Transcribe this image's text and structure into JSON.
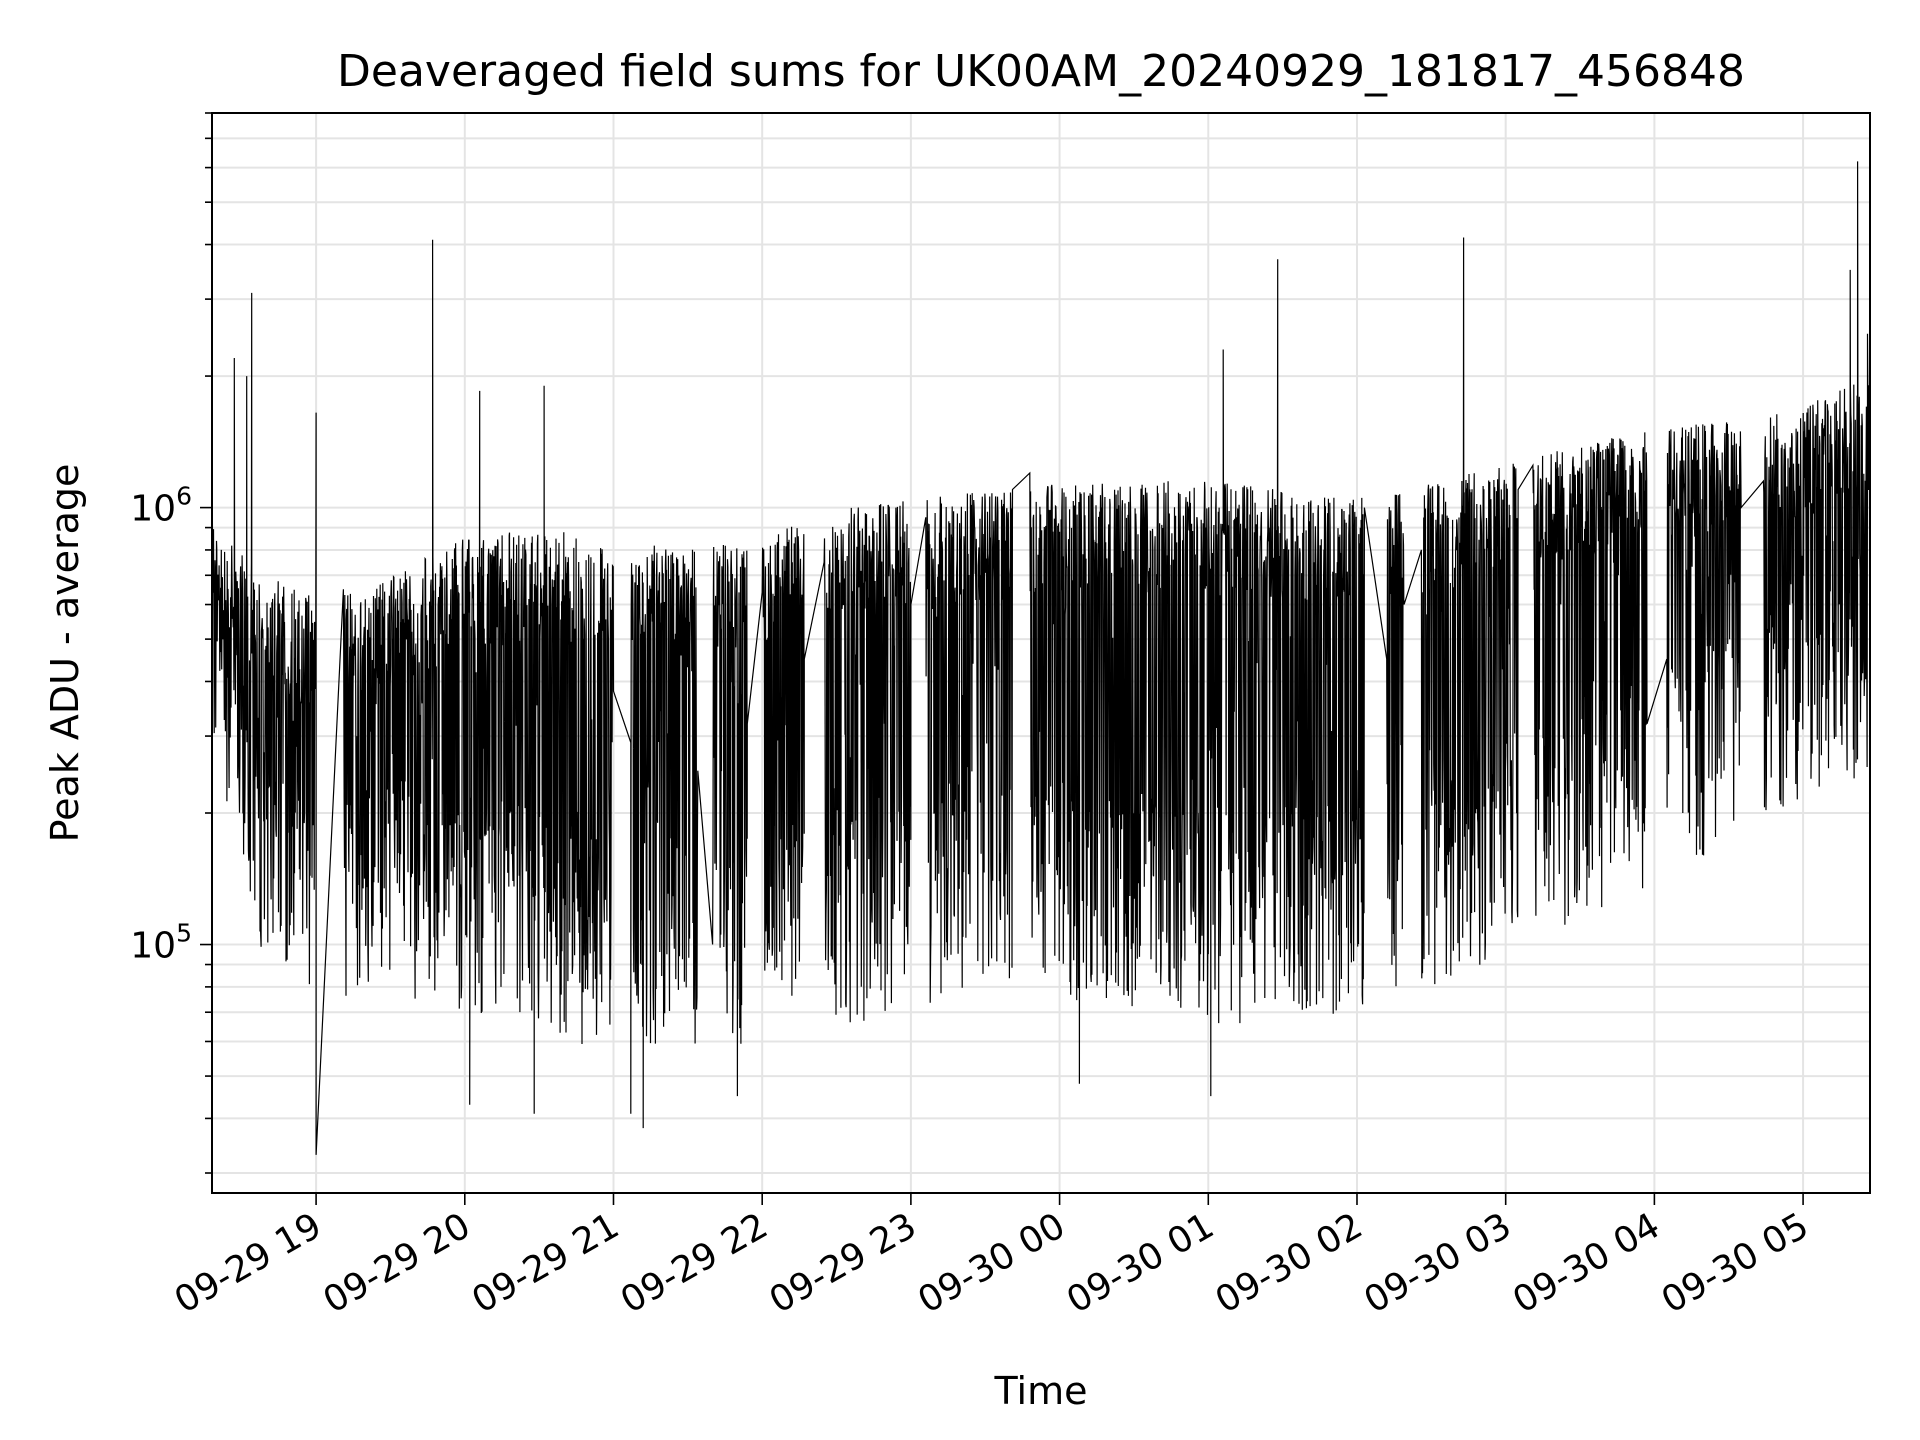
{
  "chart_data": {
    "type": "line",
    "title": "Deaveraged field sums for UK00AM_20240929_181817_456848",
    "xlabel": "Time",
    "ylabel": "Peak ADU - average",
    "yscale": "log",
    "ylim": [
      27000,
      8000000
    ],
    "xlim": [
      "2024-09-29 18:18",
      "2024-09-30 05:27"
    ],
    "grid": true,
    "line_color": "#000000",
    "x_ticks": [
      "09-29 19",
      "09-29 20",
      "09-29 21",
      "09-29 22",
      "09-29 23",
      "09-30 00",
      "09-30 01",
      "09-30 02",
      "09-30 03",
      "09-30 04",
      "09-30 05"
    ],
    "y_ticks": [
      {
        "base": "10",
        "exp": "5",
        "value": 100000
      },
      {
        "base": "10",
        "exp": "6",
        "value": 1000000
      }
    ],
    "envelope": {
      "times": [
        "2024-09-29 18:18",
        "2024-09-29 18:40",
        "2024-09-29 19:00",
        "2024-09-29 19:30",
        "2024-09-29 20:00",
        "2024-09-29 20:30",
        "2024-09-29 21:00",
        "2024-09-29 21:30",
        "2024-09-29 22:00",
        "2024-09-29 22:30",
        "2024-09-29 23:00",
        "2024-09-29 23:30",
        "2024-09-30 00:00",
        "2024-09-30 00:30",
        "2024-09-30 01:00",
        "2024-09-30 01:30",
        "2024-09-30 02:00",
        "2024-09-30 02:30",
        "2024-09-30 03:00",
        "2024-09-30 03:30",
        "2024-09-30 04:00",
        "2024-09-30 04:30",
        "2024-09-30 05:00",
        "2024-09-30 05:27"
      ],
      "high": [
        900000,
        700000,
        620000,
        700000,
        850000,
        900000,
        850000,
        800000,
        850000,
        1000000,
        1050000,
        1100000,
        1150000,
        1150000,
        1150000,
        1100000,
        1050000,
        1150000,
        1250000,
        1400000,
        1500000,
        1600000,
        1700000,
        2000000
      ],
      "low": [
        300000,
        85000,
        75000,
        75000,
        70000,
        65000,
        55000,
        55000,
        60000,
        65000,
        70000,
        80000,
        75000,
        70000,
        65000,
        65000,
        70000,
        80000,
        90000,
        110000,
        130000,
        170000,
        200000,
        250000
      ]
    },
    "gaps": [
      {
        "from": "2024-09-29 19:00",
        "to": "2024-09-29 19:11",
        "values": [
          1650000,
          650000
        ]
      },
      {
        "from": "2024-09-29 21:00",
        "to": "2024-09-29 21:07",
        "values": [
          380000,
          290000
        ]
      },
      {
        "from": "2024-09-29 21:34",
        "to": "2024-09-29 21:40",
        "values": [
          250000,
          100000
        ]
      },
      {
        "from": "2024-09-29 21:54",
        "to": "2024-09-29 22:00",
        "values": [
          320000,
          640000
        ]
      },
      {
        "from": "2024-09-29 22:17",
        "to": "2024-09-29 22:25",
        "values": [
          450000,
          750000
        ]
      },
      {
        "from": "2024-09-29 23:00",
        "to": "2024-09-29 23:06",
        "values": [
          600000,
          950000
        ]
      },
      {
        "from": "2024-09-29 23:41",
        "to": "2024-09-29 23:48",
        "values": [
          1100000,
          1200000
        ]
      },
      {
        "from": "2024-09-30 02:03",
        "to": "2024-09-30 02:12",
        "values": [
          1000000,
          450000
        ]
      },
      {
        "from": "2024-09-30 02:19",
        "to": "2024-09-30 02:26",
        "values": [
          600000,
          800000
        ]
      },
      {
        "from": "2024-09-30 03:05",
        "to": "2024-09-30 03:11",
        "values": [
          1100000,
          1250000
        ]
      },
      {
        "from": "2024-09-30 03:57",
        "to": "2024-09-30 04:05",
        "values": [
          320000,
          450000
        ]
      },
      {
        "from": "2024-09-30 04:35",
        "to": "2024-09-30 04:44",
        "values": [
          1000000,
          1150000
        ]
      }
    ],
    "spikes": [
      {
        "x": "2024-09-29 18:34",
        "y": 3100000
      },
      {
        "x": "2024-09-29 18:27",
        "y": 2200000
      },
      {
        "x": "2024-09-29 18:32",
        "y": 2000000
      },
      {
        "x": "2024-09-29 19:47",
        "y": 4100000
      },
      {
        "x": "2024-09-29 20:06",
        "y": 1850000
      },
      {
        "x": "2024-09-29 20:32",
        "y": 1900000
      },
      {
        "x": "2024-09-30 01:06",
        "y": 2300000
      },
      {
        "x": "2024-09-30 01:28",
        "y": 3700000
      },
      {
        "x": "2024-09-30 02:43",
        "y": 4150000
      },
      {
        "x": "2024-09-30 05:22",
        "y": 6200000
      },
      {
        "x": "2024-09-30 05:26",
        "y": 2500000
      },
      {
        "x": "2024-09-30 05:19",
        "y": 3500000
      }
    ],
    "dips": [
      {
        "x": "2024-09-29 19:00",
        "y": 33000
      },
      {
        "x": "2024-09-29 21:12",
        "y": 38000
      },
      {
        "x": "2024-09-29 21:07",
        "y": 41000
      },
      {
        "x": "2024-09-29 20:28",
        "y": 41000
      },
      {
        "x": "2024-09-29 21:50",
        "y": 45000
      },
      {
        "x": "2024-09-30 01:01",
        "y": 45000
      },
      {
        "x": "2024-09-30 00:08",
        "y": 48000
      },
      {
        "x": "2024-09-29 20:02",
        "y": 43000
      }
    ]
  }
}
